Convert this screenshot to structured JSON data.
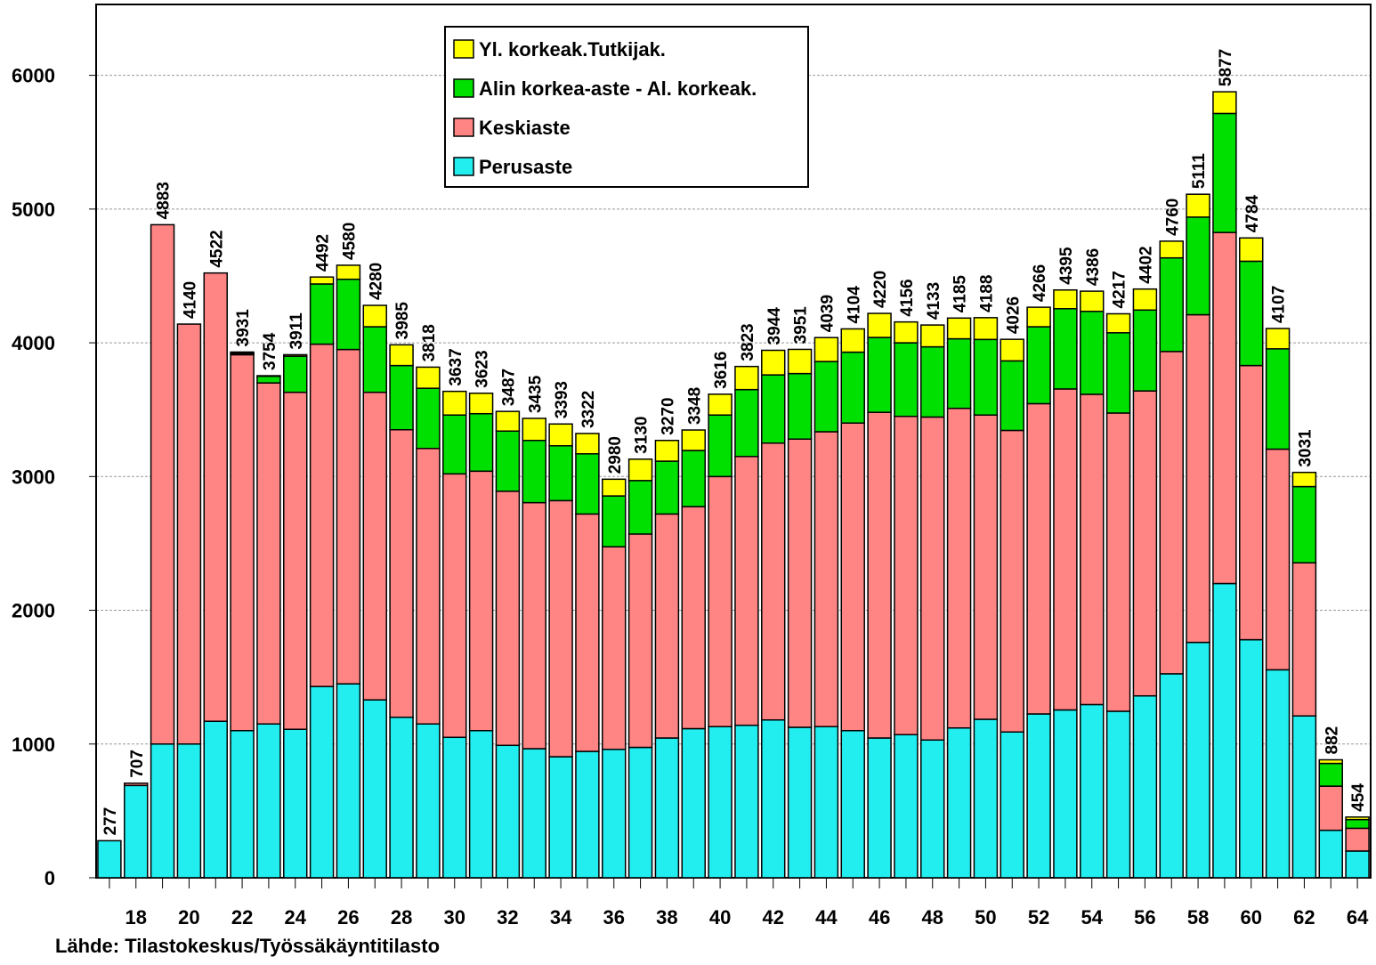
{
  "chart_data": {
    "type": "stacked-bar",
    "categories": [
      null,
      "18",
      null,
      "20",
      null,
      "22",
      null,
      "24",
      null,
      "26",
      null,
      "28",
      null,
      "30",
      null,
      "32",
      null,
      "34",
      null,
      "36",
      null,
      "38",
      null,
      "40",
      null,
      "42",
      null,
      "44",
      null,
      "46",
      null,
      "48",
      null,
      "50",
      null,
      "52",
      null,
      "54",
      null,
      "56",
      null,
      "58",
      null,
      "60",
      null,
      "62",
      null,
      "64"
    ],
    "series": [
      {
        "name": "Perusaste",
        "color": "#22eef0",
        "values": [
          277,
          690,
          1000,
          1000,
          1170,
          1100,
          1150,
          1110,
          1430,
          1450,
          1330,
          1200,
          1150,
          1050,
          1100,
          990,
          965,
          905,
          945,
          960,
          975,
          1045,
          1115,
          1130,
          1140,
          1180,
          1125,
          1130,
          1100,
          1045,
          1070,
          1030,
          1120,
          1185,
          1090,
          1225,
          1255,
          1295,
          1245,
          1360,
          1525,
          1760,
          2200,
          1780,
          1555,
          1210,
          355,
          200
        ]
      },
      {
        "name": "Keskiaste",
        "color": "#ff8585",
        "values": [
          0,
          17,
          3883,
          3140,
          3352,
          2811,
          2550,
          2520,
          2560,
          2500,
          2300,
          2150,
          2060,
          1970,
          1940,
          1900,
          1840,
          1915,
          1775,
          1515,
          1595,
          1675,
          1660,
          1870,
          2010,
          2070,
          2155,
          2205,
          2300,
          2435,
          2380,
          2415,
          2390,
          2275,
          2255,
          2320,
          2400,
          2320,
          2230,
          2280,
          2410,
          2450,
          2625,
          2050,
          1650,
          1145,
          330,
          170
        ]
      },
      {
        "name": "Alin korkea-aste - Al. korkeak.",
        "color": "#00e000",
        "values": [
          0,
          0,
          0,
          0,
          0,
          10,
          50,
          270,
          450,
          525,
          490,
          480,
          450,
          440,
          430,
          450,
          465,
          410,
          450,
          380,
          400,
          395,
          420,
          460,
          500,
          510,
          490,
          525,
          530,
          560,
          550,
          525,
          520,
          565,
          520,
          575,
          600,
          620,
          600,
          605,
          700,
          730,
          890,
          780,
          750,
          570,
          170,
          65
        ]
      },
      {
        "name": "Yl. korkeak.Tutkijak.",
        "color": "#ffff00",
        "values": [
          0,
          0,
          0,
          0,
          0,
          10,
          4,
          11,
          52,
          105,
          160,
          155,
          158,
          177,
          153,
          147,
          165,
          163,
          152,
          125,
          160,
          155,
          153,
          156,
          173,
          184,
          181,
          179,
          174,
          180,
          156,
          163,
          155,
          163,
          161,
          146,
          140,
          151,
          142,
          157,
          125,
          171,
          162,
          174,
          152,
          106,
          27,
          19
        ]
      }
    ],
    "totals": [
      277,
      707,
      4883,
      4140,
      4522,
      3931,
      3754,
      3911,
      4492,
      4580,
      4280,
      3985,
      3818,
      3637,
      3623,
      3487,
      3435,
      3393,
      3322,
      2980,
      3130,
      3270,
      3348,
      3616,
      3823,
      3944,
      3951,
      4039,
      4104,
      4220,
      4156,
      4133,
      4185,
      4188,
      4026,
      4266,
      4395,
      4386,
      4217,
      4402,
      4760,
      5111,
      5877,
      4784,
      4107,
      3031,
      882,
      454
    ],
    "ylim": [
      0,
      6530
    ],
    "yticks": [
      0,
      1000,
      2000,
      3000,
      4000,
      5000,
      6000
    ],
    "grid": true,
    "source": "Lähde: Tilastokeskus/Työssäkäyntitilasto"
  }
}
